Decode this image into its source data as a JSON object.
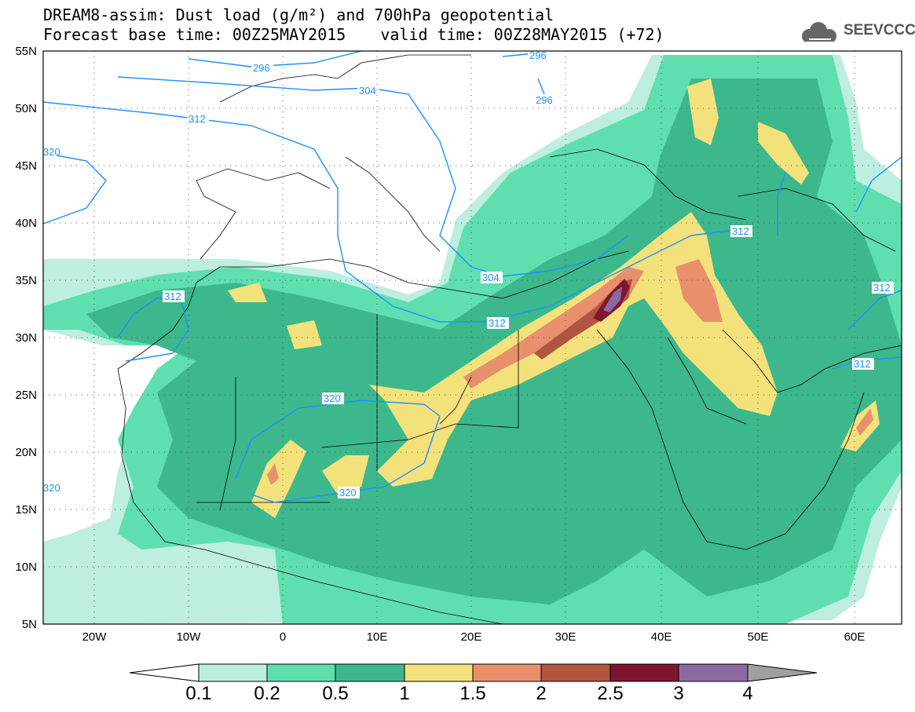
{
  "title": {
    "line1": "DREAM8-assim: Dust load (g/m²) and 700hPa geopotential",
    "base_time": "Forecast base time: 00Z25MAY2015",
    "valid_time": "valid time: 00Z28MAY2015 (+72)"
  },
  "logo": {
    "text": "SEEVCCC",
    "icon": "cloud-icon"
  },
  "axes": {
    "lat_labels": [
      "55N",
      "50N",
      "45N",
      "40N",
      "35N",
      "30N",
      "25N",
      "20N",
      "15N",
      "10N",
      "5N"
    ],
    "lon_labels": [
      "20W",
      "10W",
      "0",
      "10E",
      "20E",
      "30E",
      "40E",
      "50E",
      "60E"
    ]
  },
  "contours": {
    "labels": [
      "296",
      "296",
      "296",
      "304",
      "304",
      "312",
      "312",
      "312",
      "312",
      "312",
      "312",
      "320",
      "320",
      "320",
      "320"
    ]
  },
  "colorbar": {
    "labels": [
      "0.1",
      "0.2",
      "0.5",
      "1",
      "1.5",
      "2",
      "2.5",
      "3",
      "4"
    ],
    "colors": [
      "#bdeee0",
      "#5fdfb0",
      "#3cb88c",
      "#f3e27c",
      "#e8906c",
      "#b05540",
      "#801530",
      "#8b6aa0"
    ],
    "over_color": "#a0a0a0",
    "under_color": "#ffffff"
  }
}
